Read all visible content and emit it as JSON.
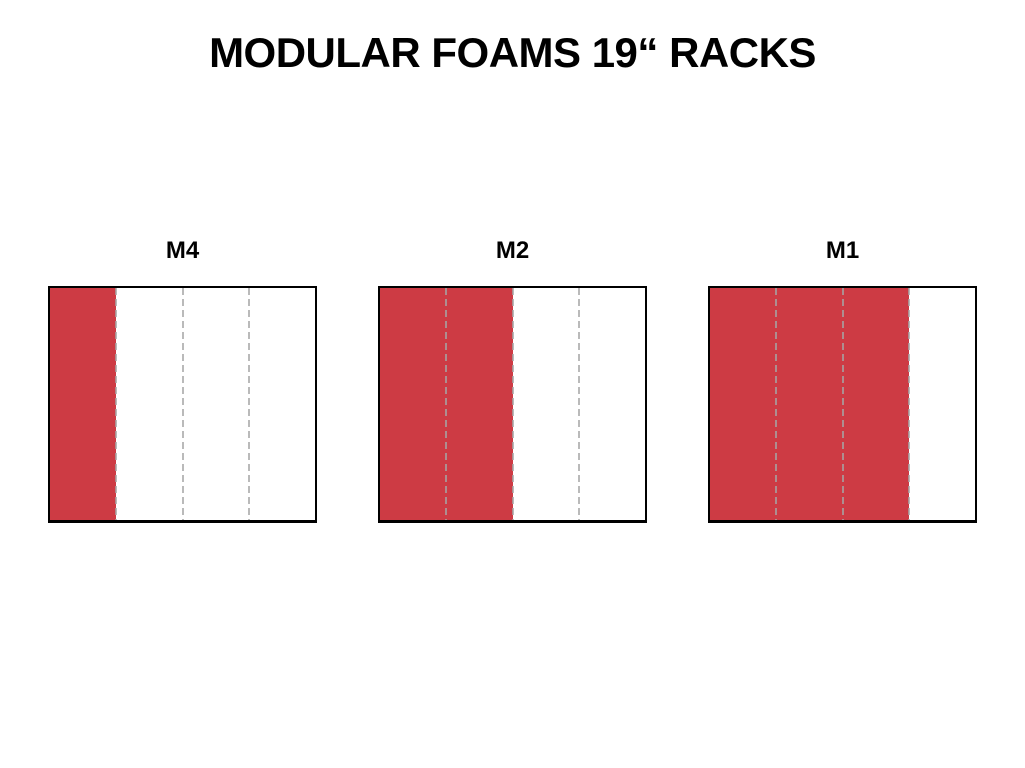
{
  "title": "MODULAR FOAMS 19“ RACKS",
  "racks": [
    {
      "label": "M4",
      "total_sections": 4,
      "filled_sections": 1,
      "filled_percent": 25
    },
    {
      "label": "M2",
      "total_sections": 4,
      "filled_sections": 2,
      "filled_percent": 50
    },
    {
      "label": "M1",
      "total_sections": 4,
      "filled_sections": 3,
      "filled_percent": 75
    }
  ],
  "colors": {
    "fill_red": "#CD3B44",
    "border_black": "#000000",
    "divider_gray": "#A6A6A6",
    "background": "#FFFFFF"
  }
}
